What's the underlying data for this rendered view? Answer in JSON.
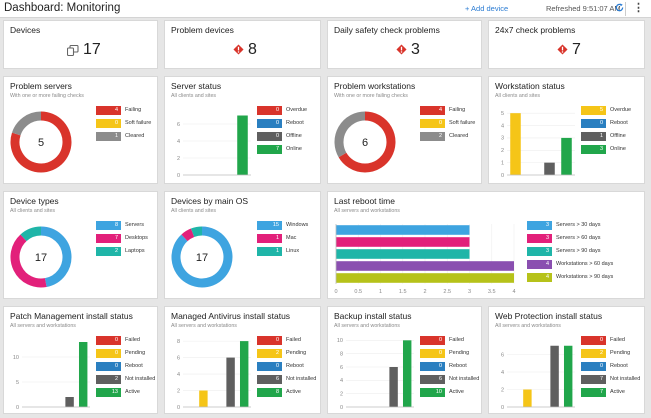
{
  "header": {
    "title": "Dashboard: Monitoring",
    "add_device": "+ Add device",
    "refreshed": "Refreshed 9:51:07 AM"
  },
  "colors": {
    "red": "#d9342b",
    "yellow": "#f5c518",
    "blue": "#2a7fc0",
    "gray": "#8c8c8c",
    "darkgray": "#5f5f5f",
    "green": "#21a64b",
    "teal": "#1fb5a8",
    "magenta": "#e2207a",
    "purple": "#8a4fb0",
    "olive": "#b6c21a",
    "lightblue": "#3ea4e0"
  },
  "row1": [
    {
      "title": "Devices",
      "value": "17",
      "icon": "devices-icon"
    },
    {
      "title": "Problem devices",
      "value": "8",
      "icon": "warning-diamond-icon"
    },
    {
      "title": "Daily safety check problems",
      "value": "3",
      "icon": "warning-diamond-icon"
    },
    {
      "title": "24x7 check problems",
      "value": "7",
      "icon": "warning-diamond-icon"
    }
  ],
  "problem_servers": {
    "title": "Problem servers",
    "subtitle": "With one or more failing checks",
    "center": "5",
    "legend": [
      {
        "value": "4",
        "label": "Failing",
        "color": "red"
      },
      {
        "value": "0",
        "label": "Soft failure",
        "color": "yellow"
      },
      {
        "value": "1",
        "label": "Cleared",
        "color": "gray"
      }
    ]
  },
  "server_status": {
    "title": "Server status",
    "subtitle": "All clients and sites",
    "legend": [
      {
        "value": "0",
        "label": "Overdue",
        "color": "red"
      },
      {
        "value": "0",
        "label": "Reboot",
        "color": "blue"
      },
      {
        "value": "0",
        "label": "Offline",
        "color": "darkgray"
      },
      {
        "value": "7",
        "label": "Online",
        "color": "green"
      }
    ],
    "chart_data": {
      "type": "bar",
      "categories": [
        "Overdue",
        "Reboot",
        "Offline",
        "Online"
      ],
      "values": [
        0,
        0,
        0,
        7
      ],
      "ylim": [
        0,
        8
      ],
      "yticks": [
        0,
        2,
        4,
        6
      ]
    }
  },
  "problem_workstations": {
    "title": "Problem workstations",
    "subtitle": "With one or more failing checks",
    "center": "6",
    "legend": [
      {
        "value": "4",
        "label": "Failing",
        "color": "red"
      },
      {
        "value": "0",
        "label": "Soft failure",
        "color": "yellow"
      },
      {
        "value": "2",
        "label": "Cleared",
        "color": "gray"
      }
    ]
  },
  "workstation_status": {
    "title": "Workstation status",
    "subtitle": "All clients and sites",
    "legend": [
      {
        "value": "5",
        "label": "Overdue",
        "color": "yellow"
      },
      {
        "value": "0",
        "label": "Reboot",
        "color": "blue"
      },
      {
        "value": "1",
        "label": "Offline",
        "color": "darkgray"
      },
      {
        "value": "3",
        "label": "Online",
        "color": "green"
      }
    ],
    "chart_data": {
      "type": "bar",
      "categories": [
        "Overdue",
        "Reboot",
        "Offline",
        "Online"
      ],
      "values": [
        5,
        0,
        1,
        3
      ],
      "ylim": [
        0,
        5.5
      ],
      "yticks": [
        0,
        1,
        2,
        3,
        4,
        5
      ]
    }
  },
  "device_types": {
    "title": "Device types",
    "subtitle": "All clients and sites",
    "center": "17",
    "legend": [
      {
        "value": "8",
        "label": "Servers",
        "color": "lightblue"
      },
      {
        "value": "7",
        "label": "Desktops",
        "color": "magenta"
      },
      {
        "value": "2",
        "label": "Laptops",
        "color": "teal"
      }
    ]
  },
  "devices_by_os": {
    "title": "Devices by main OS",
    "subtitle": "All clients and sites",
    "center": "17",
    "legend": [
      {
        "value": "15",
        "label": "Windows",
        "color": "lightblue"
      },
      {
        "value": "1",
        "label": "Mac",
        "color": "magenta"
      },
      {
        "value": "1",
        "label": "Linux",
        "color": "teal"
      }
    ]
  },
  "last_reboot": {
    "title": "Last reboot time",
    "subtitle": "All servers and workstations",
    "legend": [
      {
        "value": "3",
        "label": "Servers > 30 days",
        "color": "lightblue"
      },
      {
        "value": "3",
        "label": "Servers > 60 days",
        "color": "magenta"
      },
      {
        "value": "3",
        "label": "Servers > 90 days",
        "color": "teal"
      },
      {
        "value": "4",
        "label": "Workstations > 60 days",
        "color": "purple"
      },
      {
        "value": "4",
        "label": "Workstations > 90 days",
        "color": "olive"
      }
    ],
    "chart_data": {
      "type": "bar",
      "orientation": "horizontal",
      "categories": [
        "Servers > 30 days",
        "Servers > 60 days",
        "Servers > 90 days",
        "Workstations > 60 days",
        "Workstations > 90 days"
      ],
      "values": [
        3,
        3,
        3,
        4,
        4
      ],
      "xlim": [
        0,
        4
      ],
      "xticks": [
        "0",
        "0.5",
        "1",
        "1.5",
        "2",
        "2.5",
        "3",
        "3.5",
        "4"
      ]
    }
  },
  "patch": {
    "title": "Patch Management install status",
    "subtitle": "All servers and workstations",
    "legend": [
      {
        "value": "0",
        "label": "Failed",
        "color": "red"
      },
      {
        "value": "0",
        "label": "Pending",
        "color": "yellow"
      },
      {
        "value": "0",
        "label": "Reboot",
        "color": "blue"
      },
      {
        "value": "2",
        "label": "Not installed",
        "color": "darkgray"
      },
      {
        "value": "13",
        "label": "Active",
        "color": "green"
      }
    ],
    "chart_data": {
      "type": "bar",
      "categories": [
        "Failed",
        "Pending",
        "Reboot",
        "Not installed",
        "Active"
      ],
      "values": [
        0,
        0,
        0,
        2,
        13
      ],
      "ylim": [
        0,
        14
      ],
      "yticks": [
        0,
        5,
        10
      ]
    }
  },
  "antivirus": {
    "title": "Managed Antivirus install status",
    "subtitle": "All servers and workstations",
    "legend": [
      {
        "value": "0",
        "label": "Failed",
        "color": "red"
      },
      {
        "value": "2",
        "label": "Pending",
        "color": "yellow"
      },
      {
        "value": "0",
        "label": "Reboot",
        "color": "blue"
      },
      {
        "value": "6",
        "label": "Not installed",
        "color": "darkgray"
      },
      {
        "value": "8",
        "label": "Active",
        "color": "green"
      }
    ],
    "chart_data": {
      "type": "bar",
      "categories": [
        "Failed",
        "Pending",
        "Reboot",
        "Not installed",
        "Active"
      ],
      "values": [
        0,
        2,
        0,
        6,
        8
      ],
      "ylim": [
        0,
        8.5
      ],
      "yticks": [
        0,
        2,
        4,
        6,
        8
      ]
    }
  },
  "backup": {
    "title": "Backup install status",
    "subtitle": "All servers and workstations",
    "legend": [
      {
        "value": "0",
        "label": "Failed",
        "color": "red"
      },
      {
        "value": "0",
        "label": "Pending",
        "color": "yellow"
      },
      {
        "value": "0",
        "label": "Reboot",
        "color": "blue"
      },
      {
        "value": "6",
        "label": "Not installed",
        "color": "darkgray"
      },
      {
        "value": "10",
        "label": "Active",
        "color": "green"
      }
    ],
    "chart_data": {
      "type": "bar",
      "categories": [
        "Failed",
        "Pending",
        "Reboot",
        "Not installed",
        "Active"
      ],
      "values": [
        0,
        0,
        0,
        6,
        10
      ],
      "ylim": [
        0,
        10.5
      ],
      "yticks": [
        0,
        2,
        4,
        6,
        8,
        10
      ]
    }
  },
  "webprot": {
    "title": "Web Protection install status",
    "subtitle": "All servers and workstations",
    "legend": [
      {
        "value": "0",
        "label": "Failed",
        "color": "red"
      },
      {
        "value": "2",
        "label": "Pending",
        "color": "yellow"
      },
      {
        "value": "0",
        "label": "Reboot",
        "color": "blue"
      },
      {
        "value": "7",
        "label": "Not installed",
        "color": "darkgray"
      },
      {
        "value": "7",
        "label": "Active",
        "color": "green"
      }
    ],
    "chart_data": {
      "type": "bar",
      "categories": [
        "Failed",
        "Pending",
        "Reboot",
        "Not installed",
        "Active"
      ],
      "values": [
        0,
        2,
        0,
        7,
        7
      ],
      "ylim": [
        0,
        8
      ],
      "yticks": [
        0,
        2,
        4,
        6
      ]
    }
  }
}
